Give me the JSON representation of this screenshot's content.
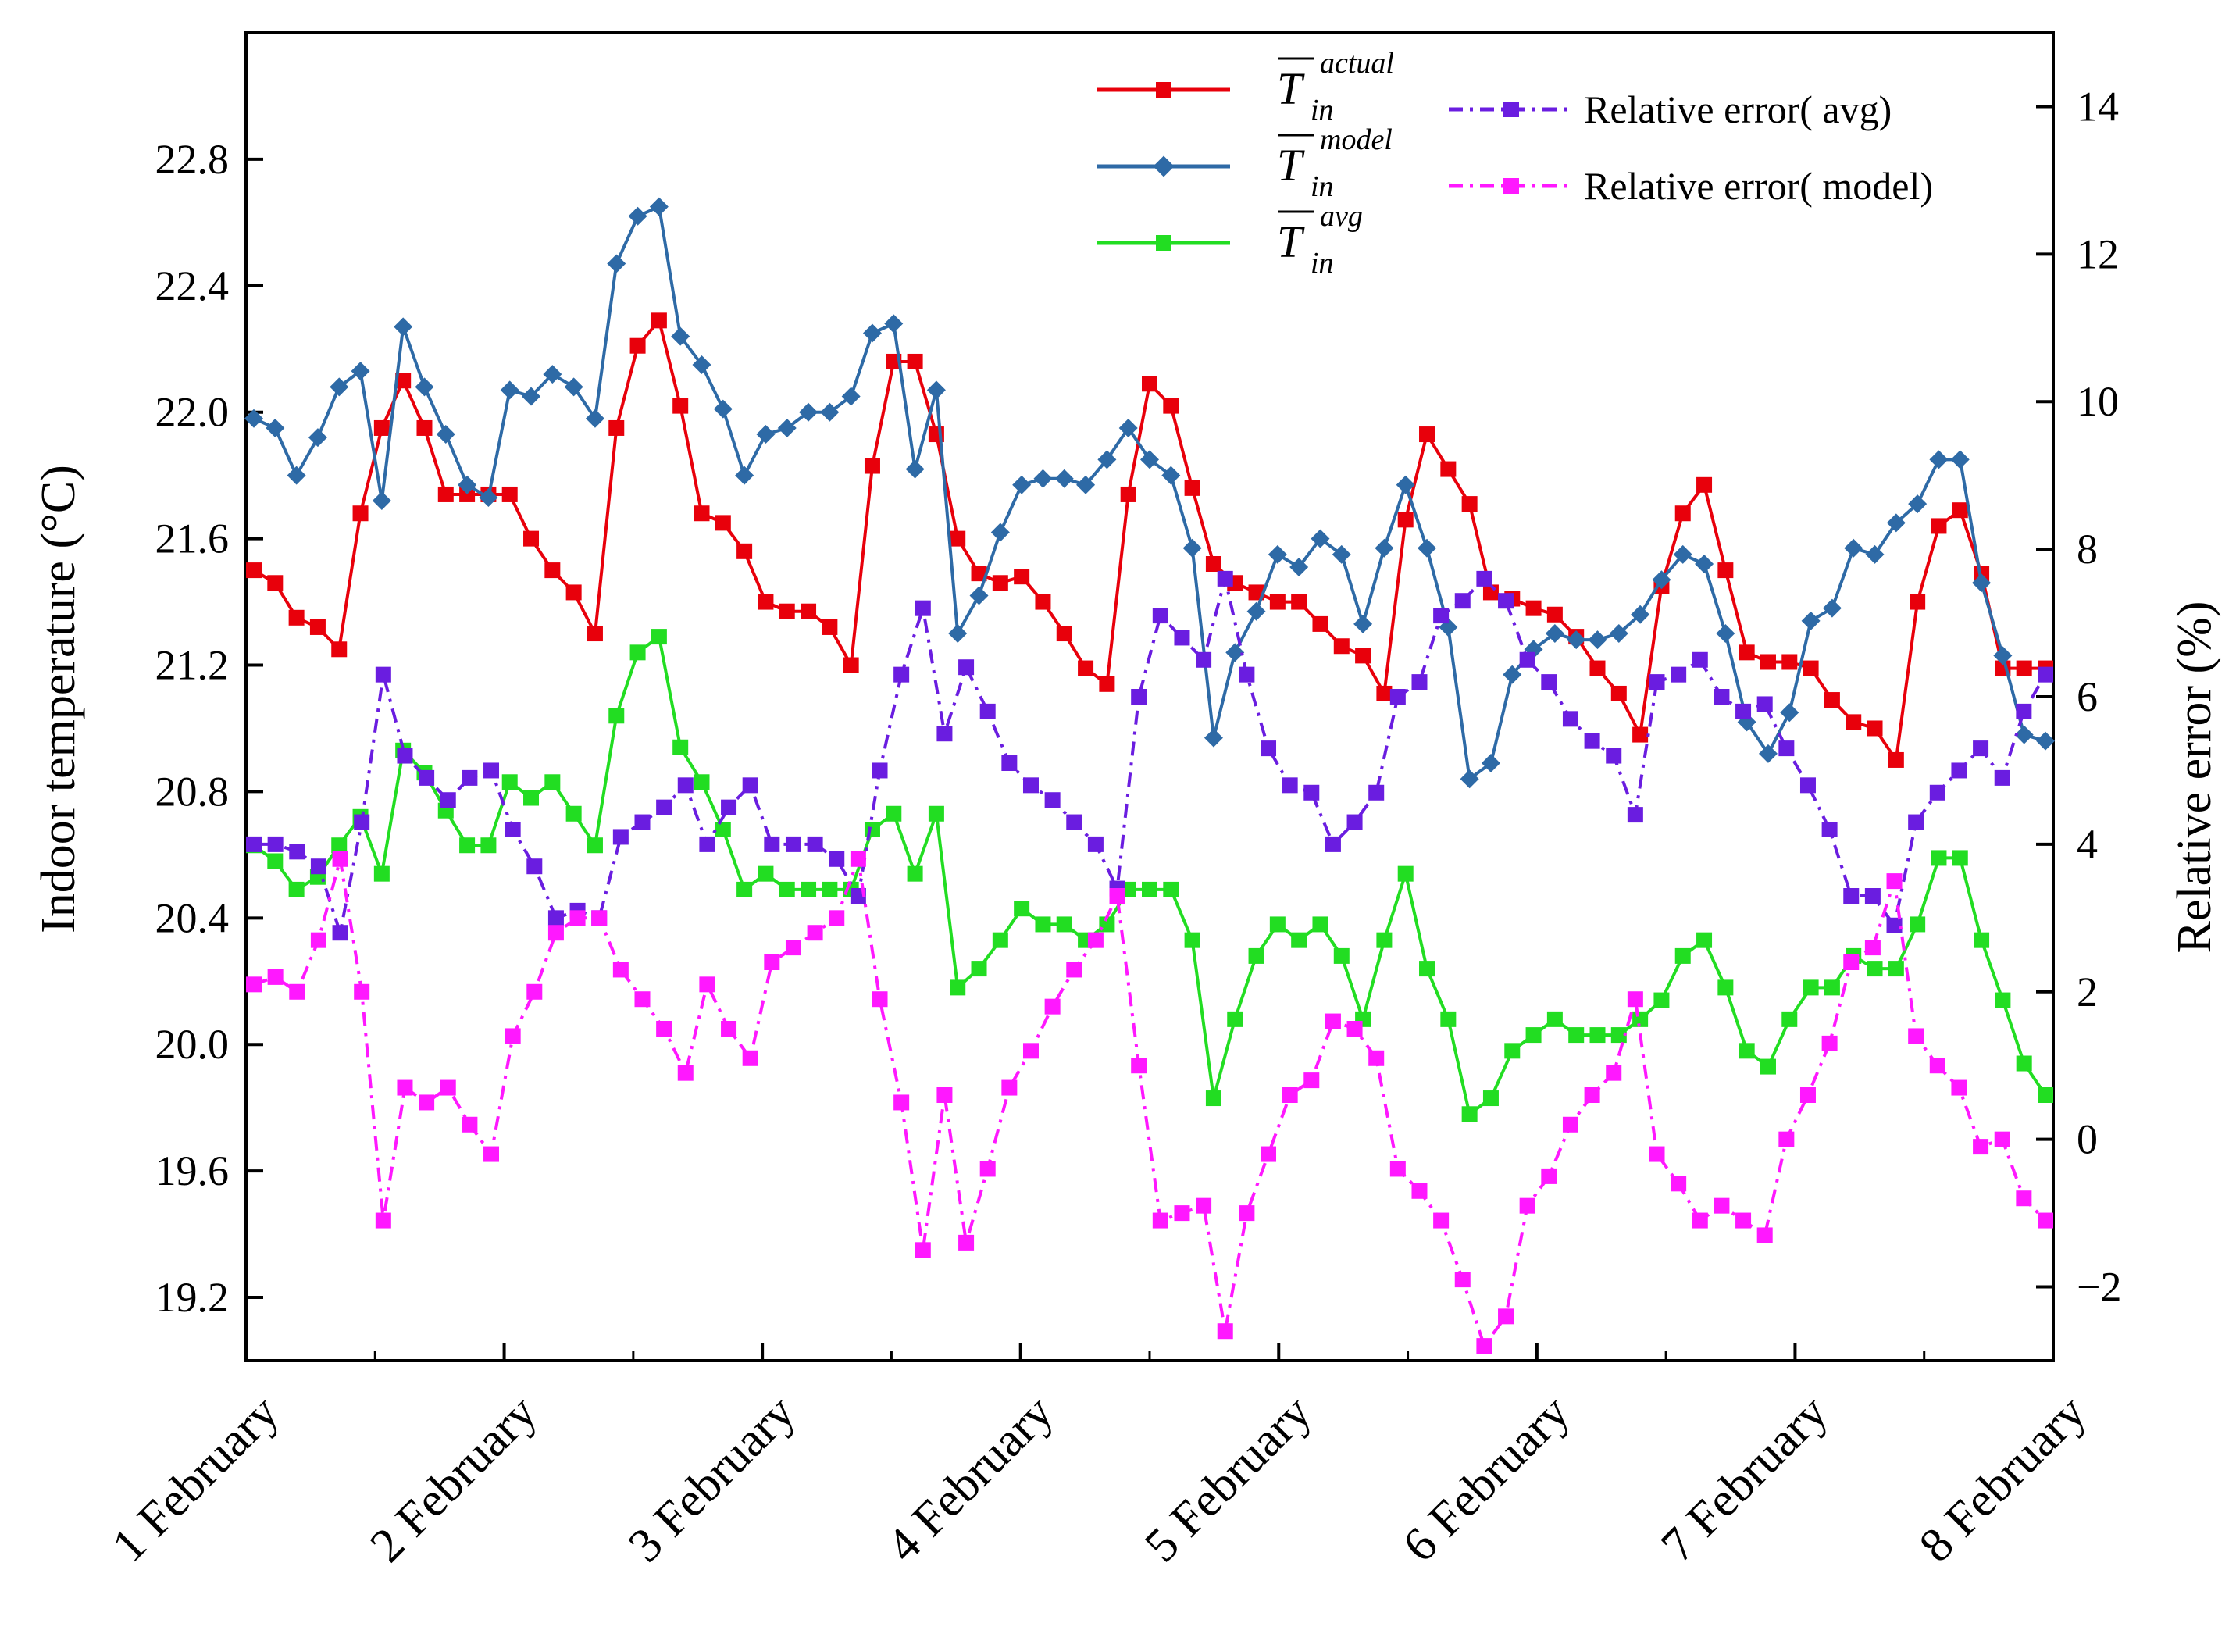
{
  "chart_data": {
    "type": "line",
    "title": "",
    "ylabel_left": "Indoor temperature (°C)",
    "ylabel_right": "Relative error (%)",
    "xlabel": "",
    "x_ticks": [
      "1 February",
      "2 February",
      "3 February",
      "4 February",
      "5 February",
      "6 February",
      "7 February",
      "8 February"
    ],
    "ylim_left": [
      19.0,
      23.2
    ],
    "ylim_right": [
      -3,
      15
    ],
    "y_ticks_left": [
      "19.2",
      "19.6",
      "20.0",
      "20.4",
      "20.8",
      "21.2",
      "21.6",
      "22.0",
      "22.4",
      "22.8"
    ],
    "y_ticks_right": [
      "−2",
      "0",
      "2",
      "4",
      "6",
      "8",
      "10",
      "12",
      "14"
    ],
    "y_ticks_left_values": [
      19.2,
      19.6,
      20.0,
      20.4,
      20.8,
      21.2,
      21.6,
      22.0,
      22.4,
      22.8
    ],
    "y_ticks_right_values": [
      -2,
      0,
      2,
      4,
      6,
      8,
      10,
      12,
      14
    ],
    "legend_position": "top-right",
    "series": [
      {
        "name": "T_in actual",
        "legend_sym": "T",
        "legend_sub": "in",
        "legend_sup": "actual",
        "axis": "left",
        "color": "#e8000b",
        "marker": "square",
        "linestyle": "solid",
        "values": [
          21.5,
          21.46,
          21.35,
          21.32,
          21.25,
          21.68,
          21.95,
          22.1,
          21.95,
          21.74,
          21.74,
          21.74,
          21.74,
          21.6,
          21.5,
          21.43,
          21.3,
          21.95,
          22.21,
          22.29,
          22.02,
          21.68,
          21.65,
          21.56,
          21.4,
          21.37,
          21.37,
          21.32,
          21.2,
          21.83,
          22.16,
          22.16,
          21.93,
          21.6,
          21.49,
          21.46,
          21.48,
          21.4,
          21.3,
          21.19,
          21.14,
          21.74,
          22.09,
          22.02,
          21.76,
          21.52,
          21.46,
          21.43,
          21.4,
          21.4,
          21.33,
          21.26,
          21.23,
          21.11,
          21.66,
          21.93,
          21.82,
          21.71,
          21.43,
          21.41,
          21.38,
          21.36,
          21.29,
          21.19,
          21.11,
          20.98,
          21.45,
          21.68,
          21.77,
          21.5,
          21.24,
          21.21,
          21.21,
          21.19,
          21.09,
          21.02,
          21.0,
          20.9,
          21.4,
          21.64,
          21.69,
          21.49,
          21.19,
          21.19,
          21.19
        ]
      },
      {
        "name": "T_in model",
        "legend_sym": "T",
        "legend_sub": "in",
        "legend_sup": "model",
        "axis": "left",
        "color": "#2e6aa6",
        "marker": "diamond",
        "linestyle": "solid",
        "values": [
          21.98,
          21.95,
          21.8,
          21.92,
          22.08,
          22.13,
          21.72,
          22.27,
          22.08,
          21.93,
          21.77,
          21.73,
          22.07,
          22.05,
          22.12,
          22.08,
          21.98,
          22.47,
          22.62,
          22.65,
          22.24,
          22.15,
          22.01,
          21.8,
          21.93,
          21.95,
          22.0,
          22.0,
          22.05,
          22.25,
          22.28,
          21.82,
          22.07,
          21.3,
          21.42,
          21.62,
          21.77,
          21.79,
          21.79,
          21.77,
          21.85,
          21.95,
          21.85,
          21.8,
          21.57,
          20.97,
          21.24,
          21.37,
          21.55,
          21.51,
          21.6,
          21.55,
          21.33,
          21.57,
          21.77,
          21.57,
          21.32,
          20.84,
          20.89,
          21.17,
          21.25,
          21.3,
          21.28,
          21.28,
          21.3,
          21.36,
          21.47,
          21.55,
          21.52,
          21.3,
          21.02,
          20.92,
          21.05,
          21.34,
          21.38,
          21.57,
          21.55,
          21.65,
          21.71,
          21.85,
          21.85,
          21.46,
          21.23,
          20.98,
          20.96
        ]
      },
      {
        "name": "T_in avg",
        "legend_sym": "T",
        "legend_sub": "in",
        "legend_sup": "avg",
        "axis": "left",
        "color": "#22dd22",
        "marker": "square",
        "linestyle": "solid",
        "values": [
          20.63,
          20.58,
          20.49,
          20.53,
          20.63,
          20.72,
          20.54,
          20.93,
          20.86,
          20.74,
          20.63,
          20.63,
          20.83,
          20.78,
          20.83,
          20.73,
          20.63,
          21.04,
          21.24,
          21.29,
          20.94,
          20.83,
          20.68,
          20.49,
          20.54,
          20.49,
          20.49,
          20.49,
          20.49,
          20.68,
          20.73,
          20.54,
          20.73,
          20.18,
          20.24,
          20.33,
          20.43,
          20.38,
          20.38,
          20.33,
          20.38,
          20.49,
          20.49,
          20.49,
          20.33,
          19.83,
          20.08,
          20.28,
          20.38,
          20.33,
          20.38,
          20.28,
          20.08,
          20.33,
          20.54,
          20.24,
          20.08,
          19.78,
          19.83,
          19.98,
          20.03,
          20.08,
          20.03,
          20.03,
          20.03,
          20.08,
          20.14,
          20.28,
          20.33,
          20.18,
          19.98,
          19.93,
          20.08,
          20.18,
          20.18,
          20.28,
          20.24,
          20.24,
          20.38,
          20.59,
          20.59,
          20.33,
          20.14,
          19.94,
          19.84
        ]
      },
      {
        "name": "Relative error( avg)",
        "axis": "right",
        "color": "#6a1de0",
        "marker": "square",
        "linestyle": "dashdot",
        "values": [
          4.0,
          4.0,
          3.9,
          3.7,
          2.8,
          4.3,
          6.3,
          5.2,
          4.9,
          4.6,
          4.9,
          5.0,
          4.2,
          3.7,
          3.0,
          3.1,
          3.0,
          4.1,
          4.3,
          4.5,
          4.8,
          4.0,
          4.5,
          4.8,
          4.0,
          4.0,
          4.0,
          3.8,
          3.3,
          5.0,
          6.3,
          7.2,
          5.5,
          6.4,
          5.8,
          5.1,
          4.8,
          4.6,
          4.3,
          4.0,
          3.4,
          6.0,
          7.1,
          6.8,
          6.5,
          7.6,
          6.3,
          5.3,
          4.8,
          4.7,
          4.0,
          4.3,
          4.7,
          6.0,
          6.2,
          7.1,
          7.3,
          7.6,
          7.3,
          6.5,
          6.2,
          5.7,
          5.4,
          5.2,
          4.4,
          6.2,
          6.3,
          6.5,
          6.0,
          5.8,
          5.9,
          5.3,
          4.8,
          4.2,
          3.3,
          3.3,
          2.9,
          4.3,
          4.7,
          5.0,
          5.3,
          4.9,
          5.8,
          6.3
        ]
      },
      {
        "name": "Relative error( model)",
        "axis": "right",
        "color": "#ff18ff",
        "marker": "square",
        "linestyle": "dashdot",
        "values": [
          2.1,
          2.2,
          2.0,
          2.7,
          3.8,
          2.0,
          -1.1,
          0.7,
          0.5,
          0.7,
          0.2,
          -0.2,
          1.4,
          2.0,
          2.8,
          3.0,
          3.0,
          2.3,
          1.9,
          1.5,
          0.9,
          2.1,
          1.5,
          1.1,
          2.4,
          2.6,
          2.8,
          3.0,
          3.8,
          1.9,
          0.5,
          -1.5,
          0.6,
          -1.4,
          -0.4,
          0.7,
          1.2,
          1.8,
          2.3,
          2.7,
          3.3,
          1.0,
          -1.1,
          -1.0,
          -0.9,
          -2.6,
          -1.0,
          -0.2,
          0.6,
          0.8,
          1.6,
          1.5,
          1.1,
          -0.4,
          -0.7,
          -1.1,
          -1.9,
          -2.8,
          -2.4,
          -0.9,
          -0.5,
          0.2,
          0.6,
          0.9,
          1.9,
          -0.2,
          -0.6,
          -1.1,
          -0.9,
          -1.1,
          -1.3,
          0.0,
          0.6,
          1.3,
          2.4,
          2.6,
          3.5,
          1.4,
          1.0,
          0.7,
          -0.1,
          0.0,
          -0.8,
          -1.1
        ]
      }
    ]
  }
}
